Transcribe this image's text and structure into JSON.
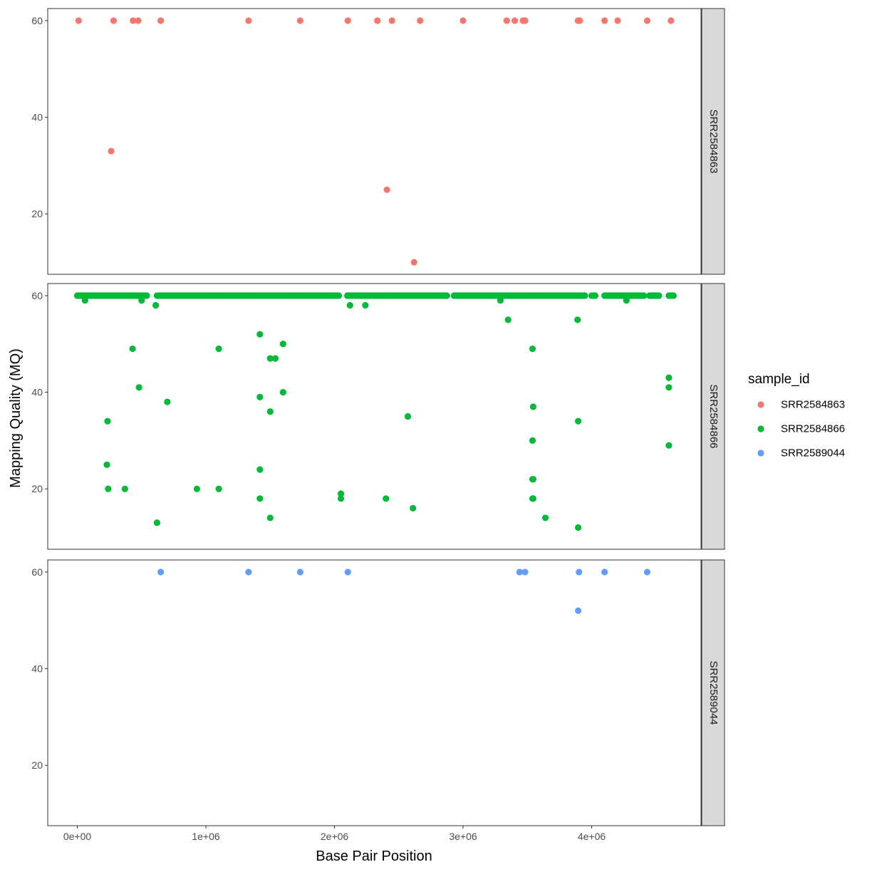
{
  "chart_data": {
    "type": "scatter",
    "facet": "rows",
    "xlabel": "Base Pair Position",
    "ylabel": "Mapping Quality (MQ)",
    "xlim": [
      -230000,
      4850000
    ],
    "ylim": [
      7.5,
      62.5
    ],
    "x_ticks": [
      {
        "value": 0,
        "label": "0e+00"
      },
      {
        "value": 1000000,
        "label": "1e+06"
      },
      {
        "value": 2000000,
        "label": "2e+06"
      },
      {
        "value": 3000000,
        "label": "3e+06"
      },
      {
        "value": 4000000,
        "label": "4e+06"
      }
    ],
    "y_ticks": [
      {
        "value": 20,
        "label": "20"
      },
      {
        "value": 40,
        "label": "40"
      },
      {
        "value": 60,
        "label": "60"
      }
    ],
    "legend": {
      "title": "sample_id",
      "placement": "right",
      "entries": [
        {
          "name": "SRR2584863",
          "color": "#F8766D"
        },
        {
          "name": "SRR2584866",
          "color": "#00BA38"
        },
        {
          "name": "SRR2589044",
          "color": "#619CFF"
        }
      ]
    },
    "series": [
      {
        "name": "SRR2584863",
        "color": "#F8766D",
        "points": [
          [
            9972,
            60
          ],
          [
            263235,
            33
          ],
          [
            281923,
            60
          ],
          [
            433359,
            60
          ],
          [
            473901,
            60
          ],
          [
            648692,
            60
          ],
          [
            1331794,
            60
          ],
          [
            1733343,
            60
          ],
          [
            2103889,
            60
          ],
          [
            2333538,
            60
          ],
          [
            2407766,
            25
          ],
          [
            2446984,
            60
          ],
          [
            2618472,
            9.99
          ],
          [
            2665639,
            60
          ],
          [
            2999330,
            60
          ],
          [
            3339313,
            60
          ],
          [
            3401754,
            60
          ],
          [
            3466050,
            60
          ],
          [
            3481820,
            60
          ],
          [
            3893550,
            60
          ],
          [
            3901205,
            60
          ],
          [
            3907769,
            60
          ],
          [
            4100183,
            60
          ],
          [
            4201958,
            60
          ],
          [
            4431393,
            60
          ],
          [
            4616538,
            60
          ]
        ]
      },
      {
        "name": "SRR2584866",
        "color": "#00BA38",
        "points": [
          [
            60000,
            59
          ],
          [
            230000,
            25
          ],
          [
            235000,
            34
          ],
          [
            240000,
            20
          ],
          [
            370000,
            20
          ],
          [
            430000,
            49
          ],
          [
            480000,
            41
          ],
          [
            500000,
            59
          ],
          [
            610000,
            58
          ],
          [
            620000,
            13
          ],
          [
            700000,
            38
          ],
          [
            930000,
            20
          ],
          [
            1100000,
            49
          ],
          [
            1100000,
            20
          ],
          [
            1420000,
            52
          ],
          [
            1420000,
            39
          ],
          [
            1420000,
            24
          ],
          [
            1420000,
            18
          ],
          [
            1500000,
            47
          ],
          [
            1500000,
            36
          ],
          [
            1500000,
            14
          ],
          [
            1540000,
            47
          ],
          [
            1600000,
            50
          ],
          [
            1600000,
            40
          ],
          [
            2050000,
            19
          ],
          [
            2050000,
            18
          ],
          [
            2120000,
            58
          ],
          [
            2240000,
            58
          ],
          [
            2400000,
            18
          ],
          [
            2570000,
            35
          ],
          [
            2610000,
            16
          ],
          [
            3290000,
            59
          ],
          [
            3350000,
            55
          ],
          [
            3540000,
            49
          ],
          [
            3545000,
            37
          ],
          [
            3540000,
            30
          ],
          [
            3540000,
            22
          ],
          [
            3545000,
            22
          ],
          [
            3540000,
            18
          ],
          [
            3545000,
            18
          ],
          [
            3640000,
            14
          ],
          [
            3890000,
            55
          ],
          [
            3895000,
            34
          ],
          [
            3895000,
            12
          ],
          [
            4270000,
            59
          ],
          [
            4600000,
            43
          ],
          [
            4600000,
            41
          ],
          [
            4600000,
            29
          ]
        ],
        "bands_at_60": [
          [
            0,
            540000
          ],
          [
            620000,
            2040000
          ],
          [
            2100000,
            2880000
          ],
          [
            2930000,
            3950000
          ],
          [
            4000000,
            4030000
          ],
          [
            4100000,
            4410000
          ],
          [
            4450000,
            4530000
          ],
          [
            4600000,
            4640000
          ]
        ]
      },
      {
        "name": "SRR2589044",
        "color": "#619CFF",
        "points": [
          [
            648692,
            60
          ],
          [
            1331794,
            60
          ],
          [
            1733343,
            60
          ],
          [
            2103889,
            60
          ],
          [
            3439000,
            60
          ],
          [
            3481820,
            60
          ],
          [
            3895000,
            52
          ],
          [
            3901205,
            60
          ],
          [
            4100183,
            60
          ],
          [
            4431393,
            60
          ]
        ]
      }
    ]
  }
}
